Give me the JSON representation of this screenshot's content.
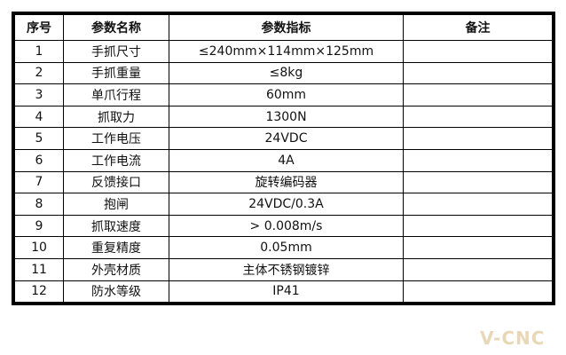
{
  "table": {
    "headers": [
      "序号",
      "参数名称",
      "参数指标",
      "备注"
    ],
    "rows": [
      [
        "1",
        "手抓尺寸",
        "≤240mm×114mm×125mm",
        ""
      ],
      [
        "2",
        "手抓重量",
        "≤8kg",
        ""
      ],
      [
        "3",
        "单爪行程",
        "60mm",
        ""
      ],
      [
        "4",
        "抓取力",
        "1300N",
        ""
      ],
      [
        "5",
        "工作电压",
        "24VDC",
        ""
      ],
      [
        "6",
        "工作电流",
        "4A",
        ""
      ],
      [
        "7",
        "反馈接口",
        "旋转编码器",
        ""
      ],
      [
        "8",
        "抱闸",
        "24VDC/0.3A",
        ""
      ],
      [
        "9",
        "抓取速度",
        "> 0.008m/s",
        ""
      ],
      [
        "10",
        "重复精度",
        "0.05mm",
        ""
      ],
      [
        "11",
        "外壳材质",
        "主体不锈钢镀锌",
        ""
      ],
      [
        "12",
        "防水等级",
        "IP41",
        ""
      ]
    ]
  },
  "watermark": "V-CNC"
}
